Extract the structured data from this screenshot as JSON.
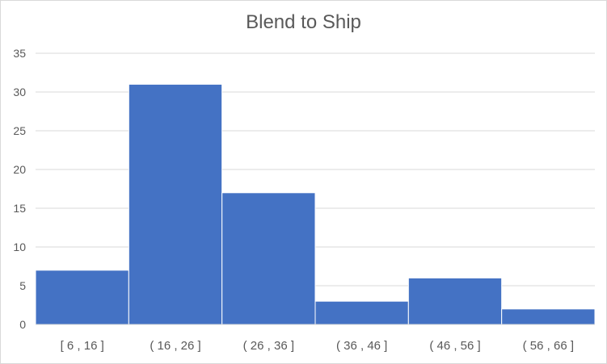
{
  "chart_data": {
    "type": "bar",
    "title": "Blend to Ship",
    "xlabel": "",
    "ylabel": "",
    "categories": [
      "[ 6 ,  16 ]",
      "( 16 ,  26 ]",
      "( 26 ,  36 ]",
      "( 36 ,  46 ]",
      "( 46 ,  56 ]",
      "( 56 ,  66 ]"
    ],
    "values": [
      7,
      31,
      17,
      3,
      6,
      2
    ],
    "ylim": [
      0,
      35
    ],
    "yticks": [
      0,
      5,
      10,
      15,
      20,
      25,
      30,
      35
    ],
    "grid": true,
    "legend": "none",
    "bar_color": "#4472c4",
    "gap": "none (histogram)"
  }
}
